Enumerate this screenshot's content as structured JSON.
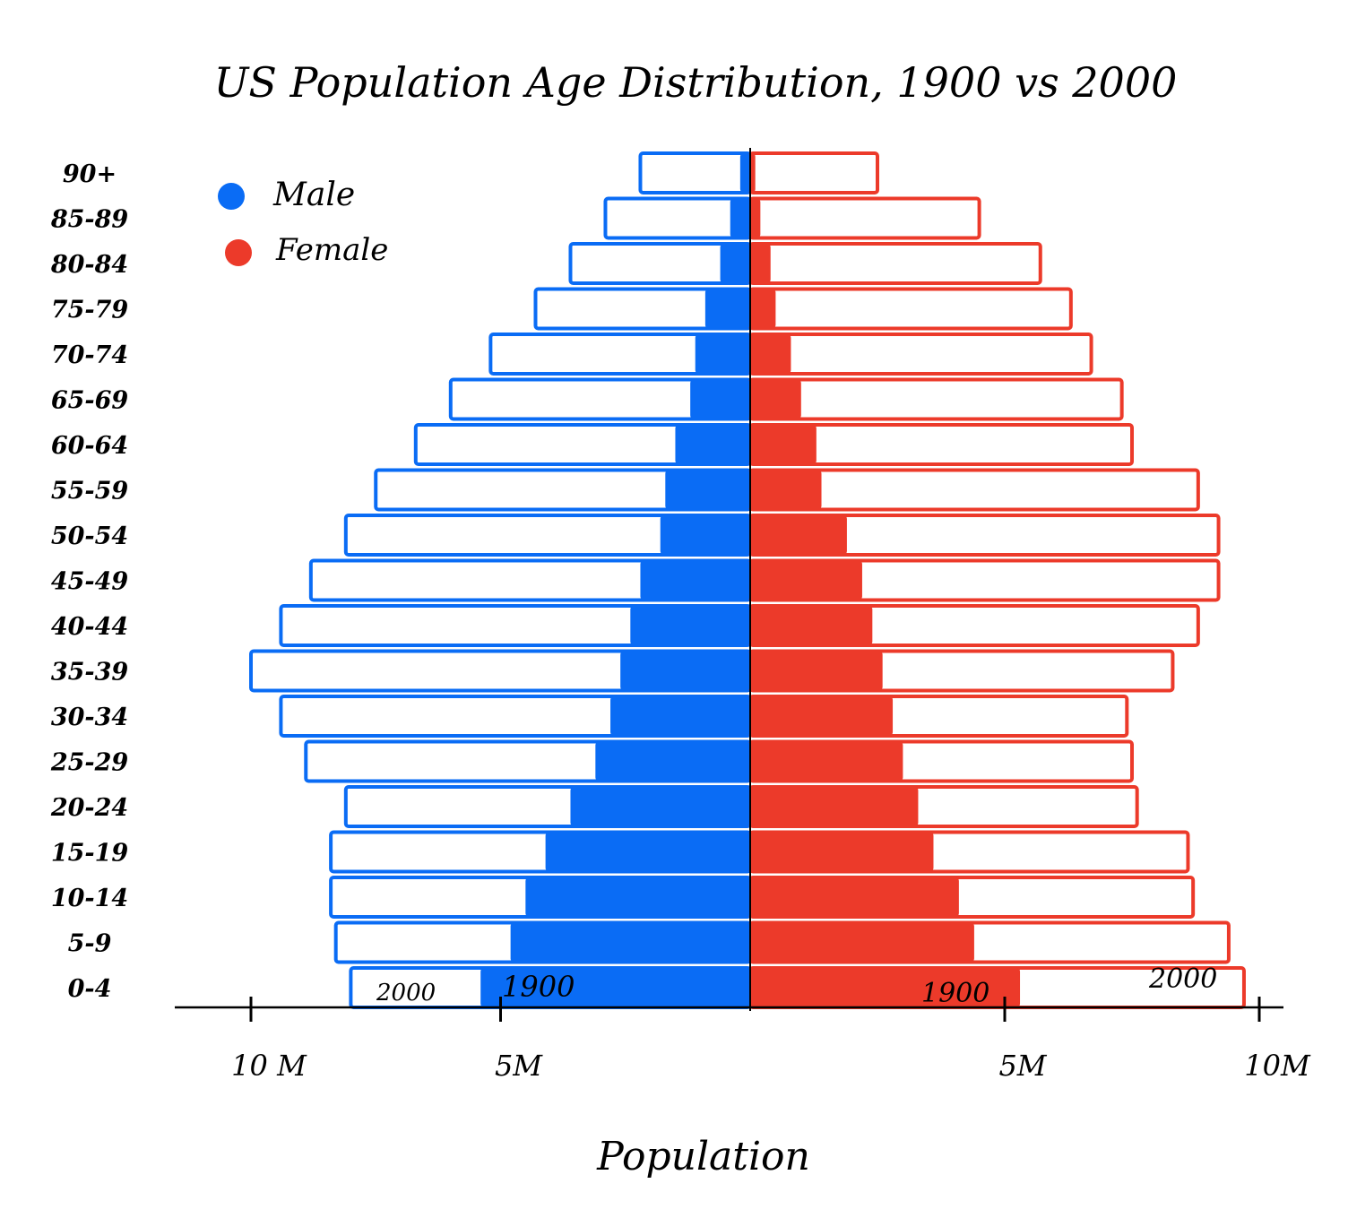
{
  "chart_data": {
    "type": "bar",
    "title": "US Population Age Distribution, 1900 vs 2000",
    "xlabel": "Population",
    "ylabel": "",
    "categories": [
      "0-4",
      "5-9",
      "10-14",
      "15-19",
      "20-24",
      "25-29",
      "30-34",
      "35-39",
      "40-44",
      "45-49",
      "50-54",
      "55-59",
      "60-64",
      "65-69",
      "70-74",
      "75-79",
      "80-84",
      "85-89",
      "90+"
    ],
    "x_ticks": [
      "10 M",
      "5M",
      "5M",
      "10M"
    ],
    "xlim": [
      -10,
      10
    ],
    "unit_millions": true,
    "legend": {
      "placement": "top-left",
      "entries": [
        {
          "name": "Male",
          "color": "#0a6cf5"
        },
        {
          "name": "Female",
          "color": "#ec3a2a"
        }
      ]
    },
    "markers": {
      "male_2000": "2000",
      "male_1900": "1900",
      "female_1900": "1900",
      "female_2000": "2000"
    },
    "series": [
      {
        "name": "Male 1900",
        "style": "filled",
        "color": "#0a6cf5",
        "values": [
          5.4,
          4.8,
          4.5,
          4.1,
          3.6,
          3.1,
          2.8,
          2.6,
          2.4,
          2.2,
          1.8,
          1.7,
          1.5,
          1.2,
          1.1,
          0.9,
          0.6,
          0.4,
          0.2
        ]
      },
      {
        "name": "Female 1900",
        "style": "filled",
        "color": "#ec3a2a",
        "values": [
          5.3,
          4.4,
          4.1,
          3.6,
          3.3,
          3.0,
          2.8,
          2.6,
          2.4,
          2.2,
          1.9,
          1.4,
          1.3,
          1.0,
          0.8,
          0.5,
          0.4,
          0.2,
          0.1
        ]
      },
      {
        "name": "Male 2000",
        "style": "outline",
        "color": "#0a6cf5",
        "values": [
          8.0,
          8.3,
          8.4,
          8.4,
          8.1,
          8.9,
          9.4,
          10.0,
          9.4,
          8.8,
          8.1,
          7.5,
          6.7,
          6.0,
          5.2,
          4.3,
          3.6,
          2.9,
          2.2
        ]
      },
      {
        "name": "Female 2000",
        "style": "outline",
        "color": "#ec3a2a",
        "values": [
          9.7,
          9.4,
          8.7,
          8.6,
          7.6,
          7.5,
          7.4,
          8.3,
          8.8,
          9.2,
          9.2,
          8.8,
          7.5,
          7.3,
          6.7,
          6.3,
          5.7,
          4.5,
          2.5
        ]
      }
    ]
  }
}
